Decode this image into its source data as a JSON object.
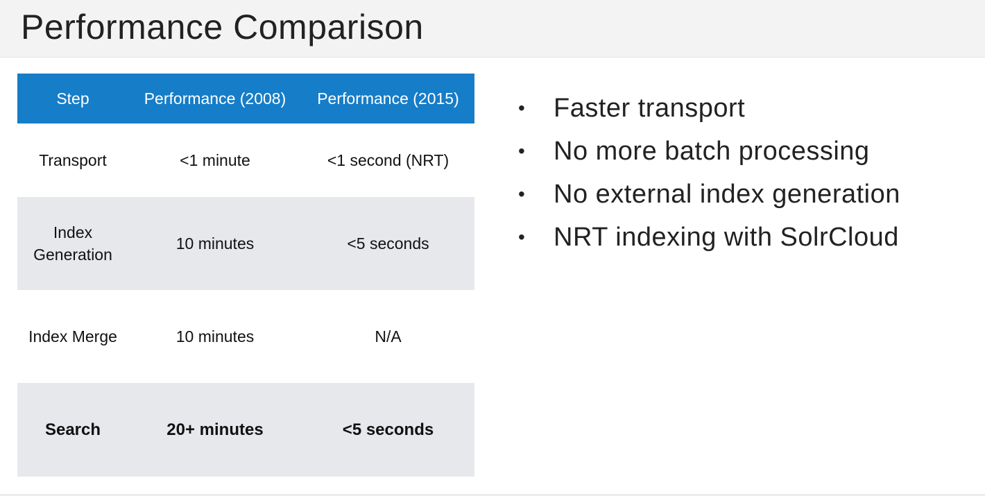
{
  "slide": {
    "title": "Performance Comparison"
  },
  "table": {
    "headers": [
      "Step",
      "Performance (2008)",
      "Performance (2015)"
    ],
    "rows": [
      {
        "step": "Transport",
        "perf_2008": "<1 minute",
        "perf_2015": "<1 second (NRT)"
      },
      {
        "step": "Index Generation",
        "perf_2008": "10 minutes",
        "perf_2015": "<5 seconds"
      },
      {
        "step": "Index Merge",
        "perf_2008": "10 minutes",
        "perf_2015": "N/A"
      },
      {
        "step": "Search",
        "perf_2008": "20+ minutes",
        "perf_2015": "<5 seconds"
      }
    ],
    "colors": {
      "header_background": "#167dc8",
      "stripe_background": "#e7e8eb"
    }
  },
  "bullets": {
    "marker": "•",
    "items": [
      "Faster transport",
      "No more batch processing",
      "No external index generation",
      "NRT indexing with SolrCloud"
    ]
  }
}
